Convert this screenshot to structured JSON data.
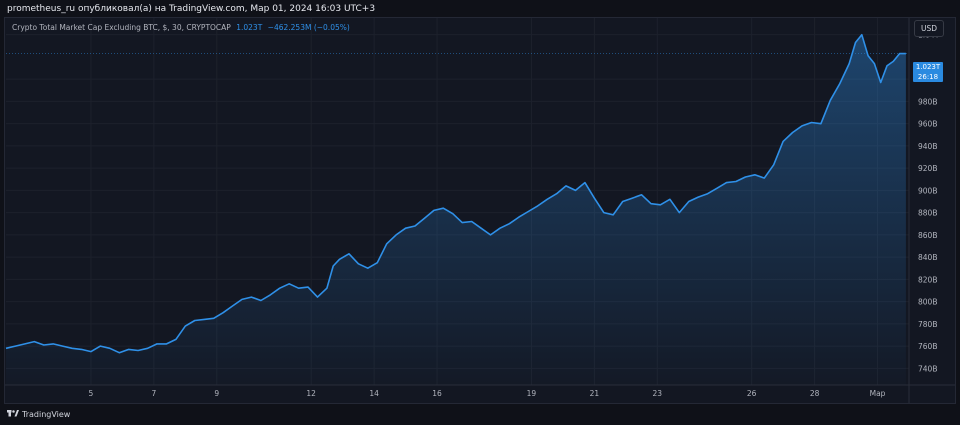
{
  "header": {
    "publish_text": "prometheus_ru опубликовал(а) на TradingView.com, Мар 01, 2024 16:03 UTC+3"
  },
  "legend": {
    "title": "Crypto Total Market Cap Excluding BTC, $, 30, CRYPTOCAP",
    "value": "1.023T",
    "change": "−462.253M (−0.05%)"
  },
  "currency_button": {
    "label": "USD"
  },
  "price_tag": {
    "value": "1.023T",
    "countdown": "26:18"
  },
  "footer": {
    "brand": "TradingView"
  },
  "colors": {
    "line": "#2f90e8",
    "background": "#131722",
    "grid": "#1d212c",
    "axis_text": "#b2b5be",
    "price_tag": "#2a8ae0"
  },
  "chart_data": {
    "type": "area",
    "title": "Crypto Total Market Cap Excluding BTC, $, 30, CRYPTOCAP",
    "ylabel": "",
    "xlabel": "",
    "y_unit": "USD billions",
    "ylim": [
      725,
      1055
    ],
    "grid": true,
    "y_ticks": [
      740,
      760,
      780,
      800,
      820,
      840,
      860,
      880,
      900,
      920,
      940,
      960,
      980,
      1000,
      1040
    ],
    "y_tick_labels": [
      "740B",
      "760B",
      "780B",
      "800B",
      "820B",
      "840B",
      "860B",
      "880B",
      "900B",
      "920B",
      "940B",
      "960B",
      "980B",
      "1T",
      "1.04T"
    ],
    "x_ticks": [
      5,
      7,
      9,
      12,
      14,
      16,
      19,
      21,
      23,
      26,
      28,
      30
    ],
    "x_tick_labels": [
      "5",
      "7",
      "9",
      "12",
      "14",
      "16",
      "19",
      "21",
      "23",
      "26",
      "28",
      "Мар"
    ],
    "xlim": [
      2.3,
      31
    ],
    "series": [
      {
        "x": [
          2.3,
          2.6,
          2.9,
          3.2,
          3.5,
          3.8,
          4.1,
          4.4,
          4.7,
          5.0,
          5.3,
          5.6,
          5.9,
          6.2,
          6.5,
          6.8,
          7.1,
          7.4,
          7.7,
          8.0,
          8.3,
          8.6,
          8.9,
          9.2,
          9.5,
          9.8,
          10.1,
          10.4,
          10.7,
          11.0,
          11.3,
          11.6,
          11.9,
          12.2,
          12.5,
          12.7,
          12.9,
          13.2,
          13.5,
          13.8,
          14.1,
          14.4,
          14.7,
          15.0,
          15.3,
          15.6,
          15.9,
          16.2,
          16.5,
          16.8,
          17.1,
          17.4,
          17.7,
          18.0,
          18.3,
          18.6,
          18.9,
          19.2,
          19.5,
          19.8,
          20.1,
          20.4,
          20.7,
          21.0,
          21.3,
          21.6,
          21.9,
          22.2,
          22.5,
          22.8,
          23.1,
          23.4,
          23.7,
          24.0,
          24.3,
          24.6,
          24.9,
          25.2,
          25.5,
          25.8,
          26.1,
          26.4,
          26.7,
          27.0,
          27.3,
          27.6,
          27.9,
          28.2,
          28.5,
          28.8,
          29.1,
          29.3,
          29.5,
          29.7,
          29.9,
          30.1,
          30.3,
          30.5,
          30.7,
          30.9
        ],
        "values": [
          758,
          760,
          762,
          764,
          761,
          762,
          760,
          758,
          757,
          755,
          760,
          758,
          754,
          757,
          756,
          758,
          762,
          762,
          766,
          778,
          783,
          784,
          785,
          790,
          796,
          802,
          804,
          801,
          806,
          812,
          816,
          812,
          813,
          804,
          812,
          832,
          838,
          843,
          834,
          830,
          835,
          852,
          860,
          866,
          868,
          875,
          882,
          884,
          879,
          871,
          872,
          866,
          860,
          866,
          870,
          876,
          881,
          886,
          892,
          897,
          904,
          900,
          907,
          893,
          880,
          878,
          890,
          893,
          896,
          888,
          887,
          892,
          880,
          890,
          894,
          897,
          902,
          907,
          908,
          912,
          914,
          911,
          923,
          944,
          952,
          958,
          961,
          960,
          981,
          996,
          1014,
          1033,
          1040,
          1021,
          1014,
          997,
          1012,
          1016,
          1023,
          1023
        ]
      }
    ]
  }
}
